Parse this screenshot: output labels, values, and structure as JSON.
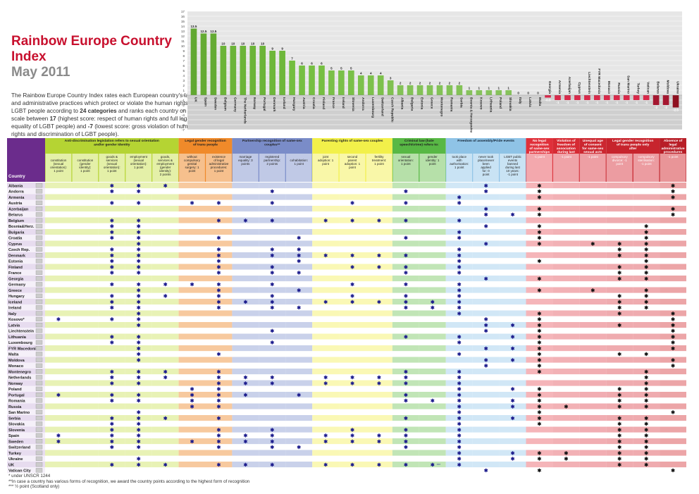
{
  "title": "Rainbow Europe Country Index",
  "subtitle": "May 2011",
  "description": {
    "p1": "The Rainbow Europe Country Index rates each European country's laws and administrative practices which protect or violate the human rights of LGBT people according to ",
    "b1": "24 categories",
    "p2": " and ranks each country on a scale between ",
    "b2": "17",
    "p3": " (highest score: respect of human rights and full legal equality of LGBT people) and ",
    "b3": "-7",
    "p4": " (lowest score: gross violation of human rights and discrimination of LGBT people)."
  },
  "colors": {
    "positive": "#66bb2e",
    "negative": "#b3001b",
    "star": "#1a1a8c",
    "black_star": "#111111"
  },
  "chart_data": {
    "type": "bar",
    "ylim": [
      -7,
      17
    ],
    "yticks": [
      -7,
      -6,
      -5,
      -4,
      -3,
      -2,
      -1,
      0,
      1,
      2,
      3,
      4,
      5,
      6,
      7,
      8,
      9,
      10,
      11,
      12,
      13,
      14,
      15,
      16,
      17
    ],
    "grid": true,
    "categories": [
      "UK",
      "Spain",
      "Sweden",
      "Belgium",
      "Germany",
      "The Netherlands",
      "Norway",
      "Portugal",
      "Denmark",
      "Iceland",
      "Hungary",
      "Austria",
      "Croatia",
      "Finland",
      "France",
      "Ireland",
      "Slovenia",
      "Andorra",
      "Luxembourg",
      "Switzerland",
      "Czech Republic",
      "Albania",
      "Bulgaria",
      "Estonia",
      "Greece",
      "Montenegro",
      "Romania",
      "Serbia",
      "Bosnia & Herzegovina",
      "Kosovo",
      "Lithuania",
      "Poland",
      "Slovakia",
      "Italy",
      "Latvia",
      "Malta",
      "Georgia",
      "Armenia",
      "Azerbaijan",
      "Cyprus",
      "Liechtenstein",
      "FYR Macedonia",
      "Monaco",
      "Russia",
      "San Marino",
      "Turkey",
      "Vatican",
      "Belarus",
      "Moldova",
      "Ukraine"
    ],
    "values": [
      13.5,
      12.5,
      12.5,
      10,
      10,
      10,
      10,
      10,
      9,
      9,
      7,
      6,
      6,
      6,
      5,
      5,
      5,
      4,
      4,
      4,
      3,
      2,
      2,
      2,
      2,
      2,
      2,
      2,
      1,
      1,
      1,
      1,
      1,
      0,
      0,
      0,
      -0.5,
      -1,
      -1,
      -1,
      -1,
      -1,
      -1,
      -1,
      -1,
      -1,
      -1,
      -2,
      -2,
      -2.5
    ],
    "labels": [
      "13.5",
      "12.5",
      "12.5",
      "10",
      "10",
      "10",
      "10",
      "10",
      "9",
      "9",
      "7",
      "6",
      "6",
      "6",
      "5",
      "5",
      "5",
      "4",
      "4",
      "4",
      "3",
      "2",
      "2",
      "2",
      "2",
      "2",
      "2",
      "2",
      "1",
      "1",
      "1",
      "1",
      "1",
      "0",
      "0",
      "0",
      "-0.5",
      "-1",
      "-1",
      "-1",
      "-1",
      "-1",
      "-1",
      "-1",
      "-1",
      "-1",
      "-1",
      "-2",
      "-2",
      "-2.5"
    ]
  },
  "table": {
    "country_header": "Country",
    "groups": [
      {
        "label": "Anti-discrimination legislation refers to sexual orientation and/or gender identity",
        "color": "#b5d433",
        "light": "#e4f0a8",
        "span": 5
      },
      {
        "label": "Legal gender recognition of trans people",
        "color": "#f08a2a",
        "light": "#f6c08d",
        "span": 2
      },
      {
        "label": "Partnership recognition of same-sex couples**",
        "color": "#7a8cc8",
        "light": "#c0c9e6",
        "span": 3
      },
      {
        "label": "Parenting rights of same-sex couples",
        "color": "#f2f04a",
        "light": "#f9f7a8",
        "span": 3
      },
      {
        "label": "Criminal law (hate speech/crime) refers to:",
        "color": "#58b845",
        "light": "#b6e0a9",
        "span": 2
      },
      {
        "label": "Freedom of assembly/Pride events",
        "color": "#8fc3e6",
        "light": "#c9e3f4",
        "span": 3
      },
      {
        "label": "No legal recognition of same-sex partnerships",
        "color": "#e0303a",
        "light": "#f3a8ad",
        "span": 1
      },
      {
        "label": "Violation of freedom of association during last 10 years",
        "color": "#d62a33",
        "light": "#f0a3a8",
        "span": 1
      },
      {
        "label": "Unequal age of consent for same-sex sexual acts",
        "color": "#cc2730",
        "light": "#ee9fa4",
        "span": 1
      },
      {
        "label": "Legal gender recognition of trans people only after",
        "color": "#c7242d",
        "light": "#ec9ca1",
        "span": 2
      },
      {
        "label": "Absence of legal administrative procedures for legal gender recognition",
        "color": "#b81e27",
        "light": "#e99598",
        "span": 1
      }
    ],
    "columns": [
      {
        "label": "constitution (sexual orientation): 1 point",
        "g": 0
      },
      {
        "label": "constitution (gender identity): 1 point",
        "g": 0
      },
      {
        "label": "goods & services (sexual orientation): 1 point",
        "g": 0
      },
      {
        "label": "employment (sexual orientation): 1 point",
        "g": 0
      },
      {
        "label": "goods, services & employment (gender identity): 2 points",
        "g": 0
      },
      {
        "label": "without compulsory genital surgery: 1 point",
        "g": 1
      },
      {
        "label": "existence of legal administrative procedures: 1 point",
        "g": 1
      },
      {
        "label": "marriage equality: 3 points",
        "g": 2
      },
      {
        "label": "registered partnership: 2 points",
        "g": 2
      },
      {
        "label": "cohabitation: 1 point",
        "g": 2
      },
      {
        "label": "joint adoption: 1 point",
        "g": 3
      },
      {
        "label": "second parent adoption: 1 point",
        "g": 3
      },
      {
        "label": "fertility treatment: 1 point",
        "g": 3
      },
      {
        "label": "sexual orientation: 1 point",
        "g": 4
      },
      {
        "label": "gender identity: 1 point",
        "g": 4
      },
      {
        "label": "took place with authorisation: 1 point",
        "g": 5
      },
      {
        "label": "never took place/never been applied for: 0 point",
        "g": 5
      },
      {
        "label": "LGBT public events banned during last 10 years: -1 point",
        "g": 5
      },
      {
        "label": "-1 point",
        "g": 6
      },
      {
        "label": "-1 point",
        "g": 7
      },
      {
        "label": "-1 point",
        "g": 8
      },
      {
        "label": "compulsory divorce: -1 point",
        "g": 9
      },
      {
        "label": "compulsory sterilisation: -1 point",
        "g": 9
      },
      {
        "label": "-1 point",
        "g": 10
      }
    ],
    "star_glyph": "✱",
    "rows": [
      {
        "c": "Albania",
        "s": [
          2,
          3,
          4,
          16,
          18,
          23
        ]
      },
      {
        "c": "Andorra",
        "s": [
          2,
          3,
          8,
          13,
          16,
          18,
          23
        ]
      },
      {
        "c": "Armenia",
        "s": [
          15,
          18,
          23
        ]
      },
      {
        "c": "Austria",
        "s": [
          2,
          3,
          5,
          6,
          8,
          11,
          13,
          15
        ]
      },
      {
        "c": "Azerbaijan",
        "s": [
          16,
          18,
          23
        ]
      },
      {
        "c": "Belarus",
        "s": [
          16,
          17,
          18,
          23
        ]
      },
      {
        "c": "Belgium",
        "s": [
          2,
          3,
          6,
          7,
          8,
          10,
          11,
          12,
          13,
          15
        ]
      },
      {
        "c": "Bosnia&Herz.",
        "s": [
          2,
          3,
          16,
          18,
          22
        ]
      },
      {
        "c": "Bulgaria",
        "s": [
          2,
          3,
          15,
          18,
          22
        ]
      },
      {
        "c": "Croatia",
        "s": [
          2,
          3,
          6,
          9,
          13,
          15,
          18,
          22
        ]
      },
      {
        "c": "Cyprus",
        "s": [
          3,
          16,
          18,
          20,
          21,
          22
        ]
      },
      {
        "c": "Czech Rep.",
        "s": [
          2,
          3,
          6,
          8,
          9,
          15,
          21,
          22
        ]
      },
      {
        "c": "Denmark",
        "s": [
          2,
          3,
          6,
          8,
          9,
          10,
          11,
          12,
          13,
          15,
          21,
          22
        ]
      },
      {
        "c": "Estonia",
        "s": [
          2,
          3,
          6,
          9,
          15,
          18,
          22
        ]
      },
      {
        "c": "Finland",
        "s": [
          2,
          3,
          6,
          8,
          11,
          12,
          13,
          15,
          21,
          22
        ]
      },
      {
        "c": "France",
        "s": [
          2,
          3,
          6,
          8,
          9,
          13,
          15,
          21,
          22
        ]
      },
      {
        "c": "Georgia",
        "s": [
          16,
          18,
          21,
          22
        ]
      },
      {
        "c": "Germany",
        "s": [
          2,
          3,
          4,
          5,
          6,
          8,
          11,
          13,
          15
        ]
      },
      {
        "c": "Greece",
        "s": [
          3,
          6,
          9,
          15,
          18,
          20,
          22
        ]
      },
      {
        "c": "Hungary",
        "s": [
          2,
          3,
          4,
          6,
          8,
          11,
          13,
          15,
          21,
          22
        ]
      },
      {
        "c": "Iceland",
        "s": [
          2,
          3,
          6,
          7,
          8,
          10,
          11,
          12,
          13,
          14,
          15,
          21,
          22
        ]
      },
      {
        "c": "Ireland",
        "s": [
          2,
          3,
          6,
          8,
          9,
          13,
          14,
          15,
          21,
          22
        ]
      },
      {
        "c": "Italy",
        "s": [
          3,
          15,
          18,
          21,
          23
        ]
      },
      {
        "c": "Kosovo*",
        "s": [
          0,
          2,
          3,
          16,
          18,
          23
        ]
      },
      {
        "c": "Latvia",
        "s": [
          3,
          16,
          17,
          18,
          21,
          23
        ]
      },
      {
        "c": "Liechtenstein",
        "s": [
          8,
          16,
          18,
          23
        ]
      },
      {
        "c": "Lithuania",
        "s": [
          2,
          3,
          13,
          15,
          17,
          18,
          23
        ]
      },
      {
        "c": "Luxembourg",
        "s": [
          2,
          3,
          8,
          15,
          18,
          23
        ]
      },
      {
        "c": "FYR Macedonia",
        "s": [
          3,
          16,
          17,
          18,
          23
        ]
      },
      {
        "c": "Malta",
        "s": [
          3,
          6,
          15,
          18,
          21,
          22
        ]
      },
      {
        "c": "Moldova",
        "s": [
          3,
          16,
          17,
          18,
          23
        ]
      },
      {
        "c": "Monaco",
        "s": [
          16,
          18,
          23
        ]
      },
      {
        "c": "Montenegro",
        "s": [
          2,
          3,
          4,
          6,
          13,
          15,
          18,
          22
        ]
      },
      {
        "c": "Netherlands",
        "s": [
          2,
          3,
          4,
          6,
          7,
          8,
          10,
          11,
          12,
          13,
          15,
          22
        ]
      },
      {
        "c": "Norway",
        "s": [
          2,
          3,
          6,
          7,
          8,
          10,
          11,
          12,
          13,
          15,
          22
        ]
      },
      {
        "c": "Poland",
        "s": [
          5,
          6,
          15,
          17,
          18,
          21,
          22
        ]
      },
      {
        "c": "Portugal",
        "s": [
          0,
          2,
          3,
          5,
          6,
          7,
          9,
          13,
          15,
          18,
          21,
          22
        ]
      },
      {
        "c": "Romania",
        "s": [
          2,
          3,
          5,
          6,
          13,
          14,
          15,
          17,
          18,
          21,
          22
        ]
      },
      {
        "c": "Russia",
        "s": [
          5,
          6,
          15,
          17,
          18,
          19,
          21,
          22
        ]
      },
      {
        "c": "San Marino",
        "s": [
          3,
          15,
          18,
          23
        ]
      },
      {
        "c": "Serbia",
        "s": [
          2,
          3,
          4,
          6,
          13,
          15,
          17,
          18,
          21,
          22
        ]
      },
      {
        "c": "Slovakia",
        "s": [
          2,
          3,
          15,
          18,
          21,
          22
        ]
      },
      {
        "c": "Slovenia",
        "s": [
          2,
          3,
          6,
          8,
          11,
          13,
          15,
          21,
          22
        ]
      },
      {
        "c": "Spain",
        "s": [
          0,
          2,
          3,
          6,
          7,
          8,
          10,
          11,
          12,
          13,
          15,
          21,
          22
        ]
      },
      {
        "c": "Sweden",
        "s": [
          0,
          2,
          3,
          5,
          6,
          7,
          8,
          10,
          11,
          12,
          13,
          15,
          21,
          22
        ]
      },
      {
        "c": "Switzerland",
        "s": [
          2,
          3,
          6,
          8,
          9,
          13,
          15,
          21,
          22
        ]
      },
      {
        "c": "Turkey",
        "s": [
          15,
          17,
          18,
          19,
          21,
          22
        ]
      },
      {
        "c": "Ukraine",
        "s": [
          3,
          15,
          17,
          18,
          19,
          21,
          22
        ]
      },
      {
        "c": "UK",
        "s": [
          2,
          3,
          4,
          6,
          7,
          8,
          10,
          11,
          12,
          13,
          14,
          15,
          21,
          22
        ]
      },
      {
        "c": "Vatican City",
        "s": [
          16,
          18,
          23
        ]
      }
    ],
    "gi_uk_mark": "***"
  },
  "footnotes": [
    "* under UNSCR 1244",
    "**In case a country has various forms of recognition, we award the country points according to the highest form of recognition",
    "*** ½ point (Scotland only)"
  ]
}
